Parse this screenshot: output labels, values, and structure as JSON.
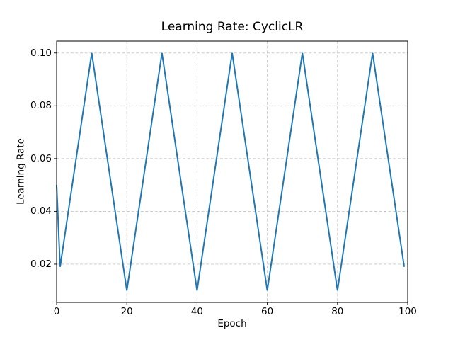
{
  "chart_data": {
    "type": "line",
    "title": "Learning Rate: CyclicLR",
    "xlabel": "Epoch",
    "ylabel": "Learning Rate",
    "x": [
      0,
      1,
      2,
      3,
      4,
      5,
      6,
      7,
      8,
      9,
      10,
      11,
      12,
      13,
      14,
      15,
      16,
      17,
      18,
      19,
      20,
      21,
      22,
      23,
      24,
      25,
      26,
      27,
      28,
      29,
      30,
      31,
      32,
      33,
      34,
      35,
      36,
      37,
      38,
      39,
      40,
      41,
      42,
      43,
      44,
      45,
      46,
      47,
      48,
      49,
      50,
      51,
      52,
      53,
      54,
      55,
      56,
      57,
      58,
      59,
      60,
      61,
      62,
      63,
      64,
      65,
      66,
      67,
      68,
      69,
      70,
      71,
      72,
      73,
      74,
      75,
      76,
      77,
      78,
      79,
      80,
      81,
      82,
      83,
      84,
      85,
      86,
      87,
      88,
      89,
      90,
      91,
      92,
      93,
      94,
      95,
      96,
      97,
      98,
      99
    ],
    "y": [
      0.05,
      0.019,
      0.028,
      0.037,
      0.046,
      0.055,
      0.064,
      0.073,
      0.082,
      0.091,
      0.1,
      0.091,
      0.082,
      0.073,
      0.064,
      0.055,
      0.046,
      0.037,
      0.028,
      0.019,
      0.01,
      0.019,
      0.028,
      0.037,
      0.046,
      0.055,
      0.064,
      0.073,
      0.082,
      0.091,
      0.1,
      0.091,
      0.082,
      0.073,
      0.064,
      0.055,
      0.046,
      0.037,
      0.028,
      0.019,
      0.01,
      0.019,
      0.028,
      0.037,
      0.046,
      0.055,
      0.064,
      0.073,
      0.082,
      0.091,
      0.1,
      0.091,
      0.082,
      0.073,
      0.064,
      0.055,
      0.046,
      0.037,
      0.028,
      0.019,
      0.01,
      0.019,
      0.028,
      0.037,
      0.046,
      0.055,
      0.064,
      0.073,
      0.082,
      0.091,
      0.1,
      0.091,
      0.082,
      0.073,
      0.064,
      0.055,
      0.046,
      0.037,
      0.028,
      0.019,
      0.01,
      0.019,
      0.028,
      0.037,
      0.046,
      0.055,
      0.064,
      0.073,
      0.082,
      0.091,
      0.1,
      0.091,
      0.082,
      0.073,
      0.064,
      0.055,
      0.046,
      0.037,
      0.028,
      0.019
    ],
    "xlim": [
      0,
      100
    ],
    "ylim": [
      0.0055,
      0.1045
    ],
    "xticks": [
      0,
      20,
      40,
      60,
      80,
      100
    ],
    "xtick_labels": [
      "0",
      "20",
      "40",
      "60",
      "80",
      "100"
    ],
    "yticks": [
      0.02,
      0.04,
      0.06,
      0.08,
      0.1
    ],
    "ytick_labels": [
      "0.02",
      "0.04",
      "0.06",
      "0.08",
      "0.10"
    ],
    "line_color": "#1f77b4",
    "grid": true,
    "grid_color": "#c8c8c8",
    "grid_linestyle": "dashed",
    "axis_color": "#000000",
    "background": "#ffffff",
    "legend_position": "none"
  }
}
